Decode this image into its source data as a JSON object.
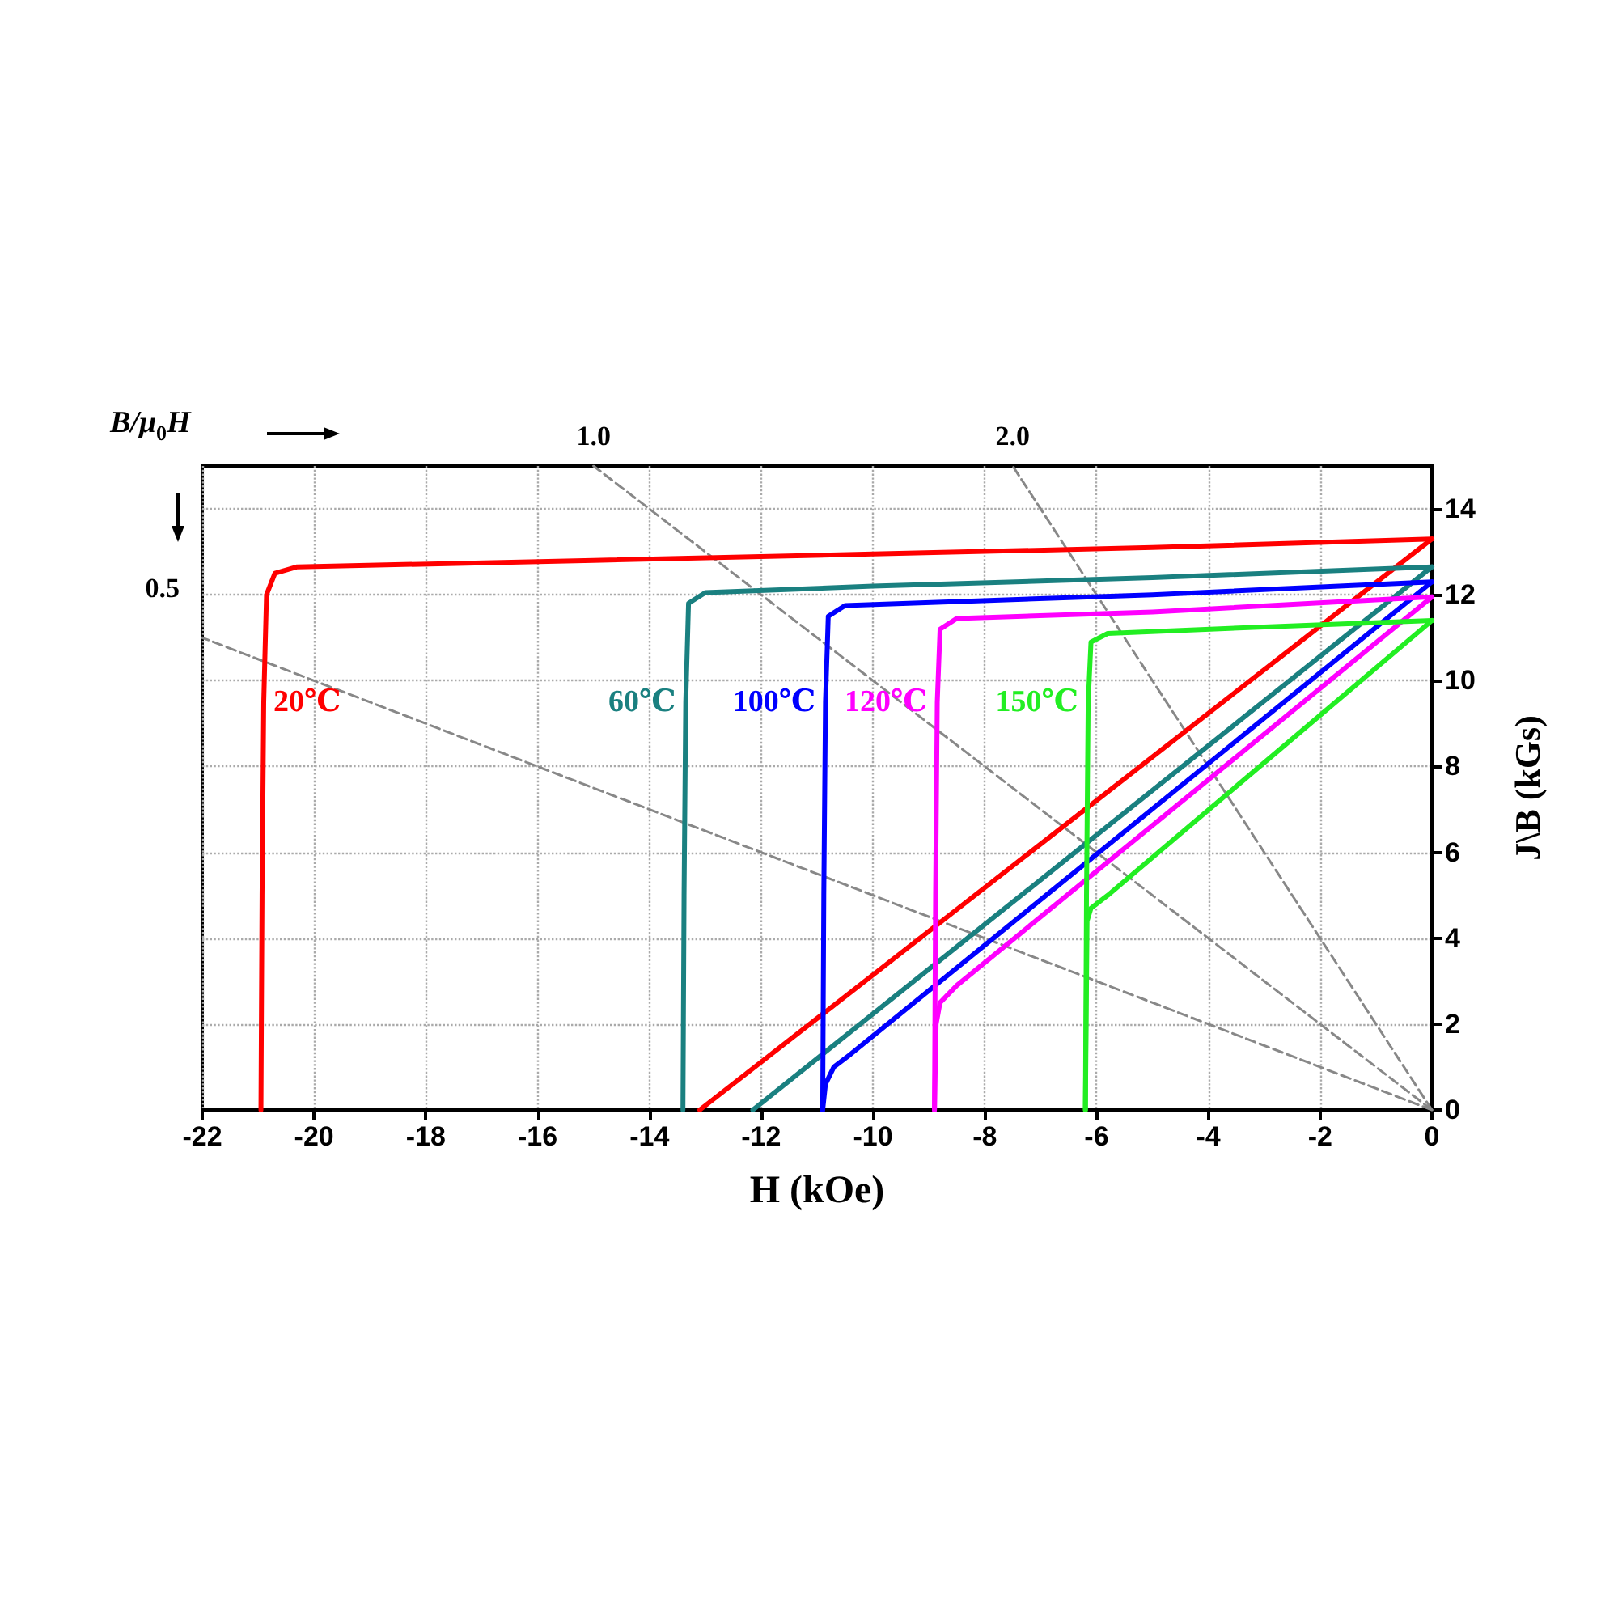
{
  "chart_data": {
    "type": "line",
    "xlabel": "H (kOe)",
    "ylabel": "J\\B (kGs)",
    "annotations": [
      "B/μ$_{0}$H"
    ],
    "xlim": [
      -22,
      0
    ],
    "xticks": [
      -22,
      -20,
      -18,
      -16,
      -14,
      -12,
      -10,
      -8,
      -6,
      -4,
      -2,
      0
    ],
    "ylim": [
      0,
      15
    ],
    "yticks": [
      0,
      2,
      4,
      6,
      8,
      10,
      12,
      14
    ],
    "grid": true,
    "legend": false,
    "series": [
      {
        "name": "20℃",
        "color": "#ff0000",
        "x": [
          -20.95,
          -20.93,
          -20.9,
          -20.85,
          -20.7,
          -20.3,
          -15,
          -10,
          -5,
          0
        ],
        "values": [
          0,
          5,
          9.5,
          12,
          12.5,
          12.65,
          12.8,
          12.95,
          13.1,
          13.3
        ]
      },
      {
        "color": "#ff0000",
        "x": [
          -13.1,
          0
        ],
        "values": [
          0,
          13.3
        ]
      },
      {
        "name": "60℃",
        "color": "#1a8080",
        "x": [
          -13.4,
          -13.38,
          -13.35,
          -13.3,
          -13,
          -10,
          -5,
          0
        ],
        "values": [
          0,
          5,
          9.5,
          11.8,
          12.05,
          12.2,
          12.4,
          12.65
        ]
      },
      {
        "color": "#1a8080",
        "x": [
          -12.15,
          0
        ],
        "values": [
          0,
          12.65
        ]
      },
      {
        "name": "100℃",
        "color": "#0000ff",
        "x": [
          -10.9,
          -10.88,
          -10.85,
          -10.8,
          -10.5,
          -5,
          0
        ],
        "values": [
          0,
          5,
          9.5,
          11.5,
          11.75,
          12,
          12.3
        ]
      },
      {
        "color": "#0000ff",
        "x": [
          -10.9,
          -10.85,
          -10.7,
          -10.4,
          0
        ],
        "values": [
          0,
          0.6,
          1,
          1.3,
          12.3
        ]
      },
      {
        "name": "120℃",
        "color": "#ff00ff",
        "x": [
          -8.9,
          -8.88,
          -8.85,
          -8.8,
          -8.5,
          -5,
          0
        ],
        "values": [
          0,
          5,
          9.5,
          11.2,
          11.45,
          11.6,
          11.95
        ]
      },
      {
        "color": "#ff00ff",
        "x": [
          -8.9,
          -8.87,
          -8.8,
          -8.5,
          0
        ],
        "values": [
          0,
          2,
          2.5,
          2.9,
          11.95
        ]
      },
      {
        "name": "150℃",
        "color": "#22ee22",
        "x": [
          -6.2,
          -6.18,
          -6.15,
          -6.1,
          -5.8,
          -3,
          0
        ],
        "values": [
          0,
          5,
          9.5,
          10.9,
          11.1,
          11.25,
          11.4
        ]
      },
      {
        "color": "#22ee22",
        "x": [
          -6.2,
          -6.17,
          -6.1,
          -5.8,
          0
        ],
        "values": [
          0,
          4.4,
          4.7,
          5,
          11.4
        ]
      },
      {
        "name": "0.5",
        "color": "#888888",
        "line_style": "dashed",
        "x": [
          0,
          -22
        ],
        "values": [
          0,
          11
        ]
      },
      {
        "name": "1.0",
        "color": "#888888",
        "line_style": "dashed",
        "x": [
          0,
          -15
        ],
        "values": [
          0,
          15
        ]
      },
      {
        "name": "2.0",
        "color": "#888888",
        "line_style": "dashed",
        "x": [
          0,
          -7.5
        ],
        "values": [
          0,
          15
        ]
      }
    ]
  }
}
